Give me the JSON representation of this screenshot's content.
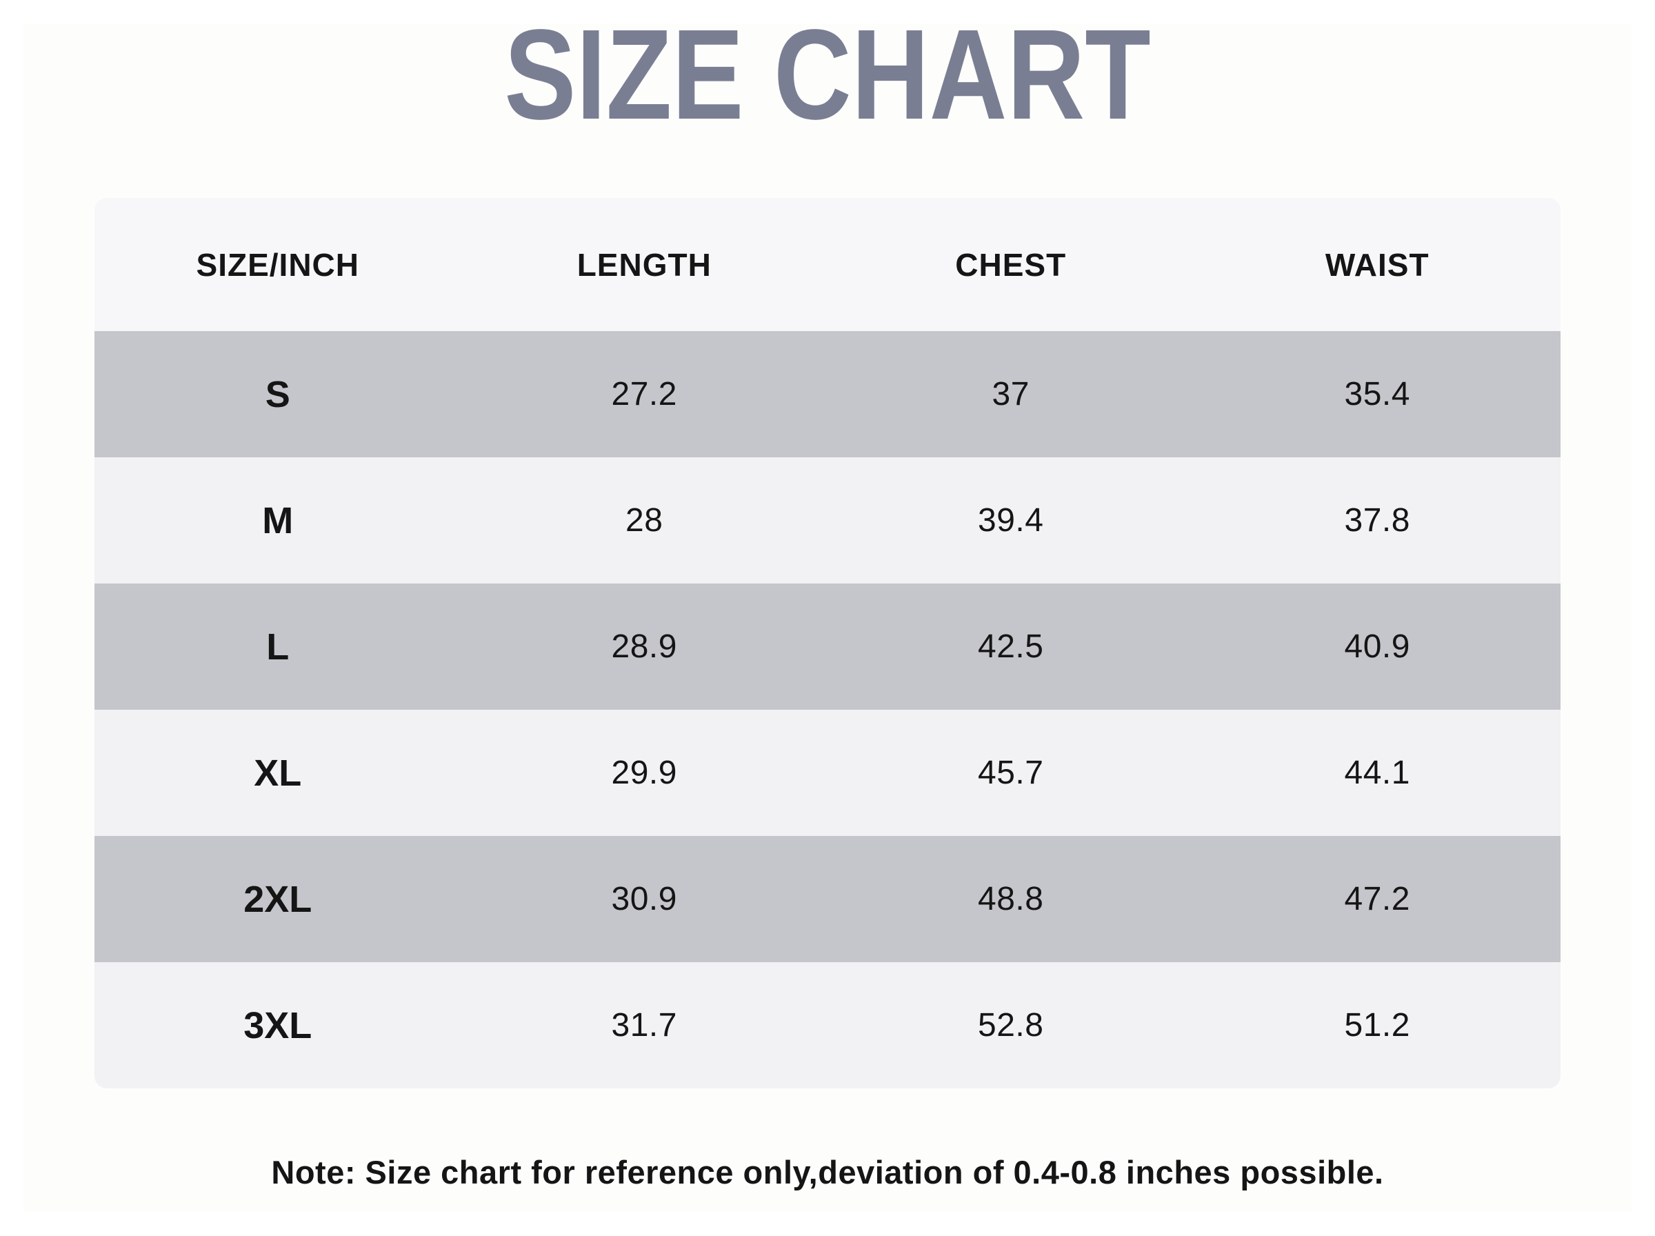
{
  "page": {
    "title": "SIZE CHART",
    "note": "Note: Size chart for reference only,deviation of 0.4-0.8 inches possible."
  },
  "table": {
    "headers": [
      "SIZE/INCH",
      "LENGTH",
      "CHEST",
      "WAIST"
    ],
    "rows": [
      {
        "size": "S",
        "length": "27.2",
        "chest": "37",
        "waist": "35.4"
      },
      {
        "size": "M",
        "length": "28",
        "chest": "39.4",
        "waist": "37.8"
      },
      {
        "size": "L",
        "length": "28.9",
        "chest": "42.5",
        "waist": "40.9"
      },
      {
        "size": "XL",
        "length": "29.9",
        "chest": "45.7",
        "waist": "44.1"
      },
      {
        "size": "2XL",
        "length": "30.9",
        "chest": "48.8",
        "waist": "47.2"
      },
      {
        "size": "3XL",
        "length": "31.7",
        "chest": "52.8",
        "waist": "51.2"
      }
    ]
  },
  "colors": {
    "title": "#7a7e93",
    "header_bg": "#f7f7f9",
    "row_gray": "#c5c6cb",
    "row_light": "#f2f2f4",
    "text": "#151515",
    "page_bg": "#fdfdfc"
  }
}
